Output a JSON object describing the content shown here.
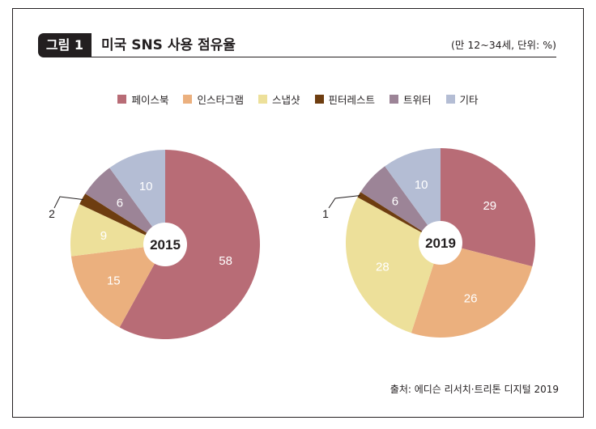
{
  "header": {
    "figure_label": "그림 1",
    "title": "미국 SNS 사용 점유율",
    "unit_note": "(만 12~34세, 단위: %)"
  },
  "legend": [
    {
      "label": "페이스북",
      "color": "#b86c76"
    },
    {
      "label": "인스타그램",
      "color": "#ebb07e"
    },
    {
      "label": "스냅샷",
      "color": "#ede09a"
    },
    {
      "label": "핀터레스트",
      "color": "#6e3d10"
    },
    {
      "label": "트위터",
      "color": "#9c8497"
    },
    {
      "label": "기타",
      "color": "#b4bdd4"
    }
  ],
  "chart_data": [
    {
      "type": "pie",
      "center_label": "2015",
      "categories": [
        "페이스북",
        "인스타그램",
        "스냅샷",
        "핀터레스트",
        "트위터",
        "기타"
      ],
      "values": [
        58,
        15,
        9,
        2,
        6,
        10
      ]
    },
    {
      "type": "pie",
      "center_label": "2019",
      "categories": [
        "페이스북",
        "인스타그램",
        "스냅샷",
        "핀터레스트",
        "트위터",
        "기타"
      ],
      "values": [
        29,
        26,
        28,
        1,
        6,
        10
      ]
    }
  ],
  "source": "출처: 에디슨 리서치·트리톤 디지털 2019"
}
